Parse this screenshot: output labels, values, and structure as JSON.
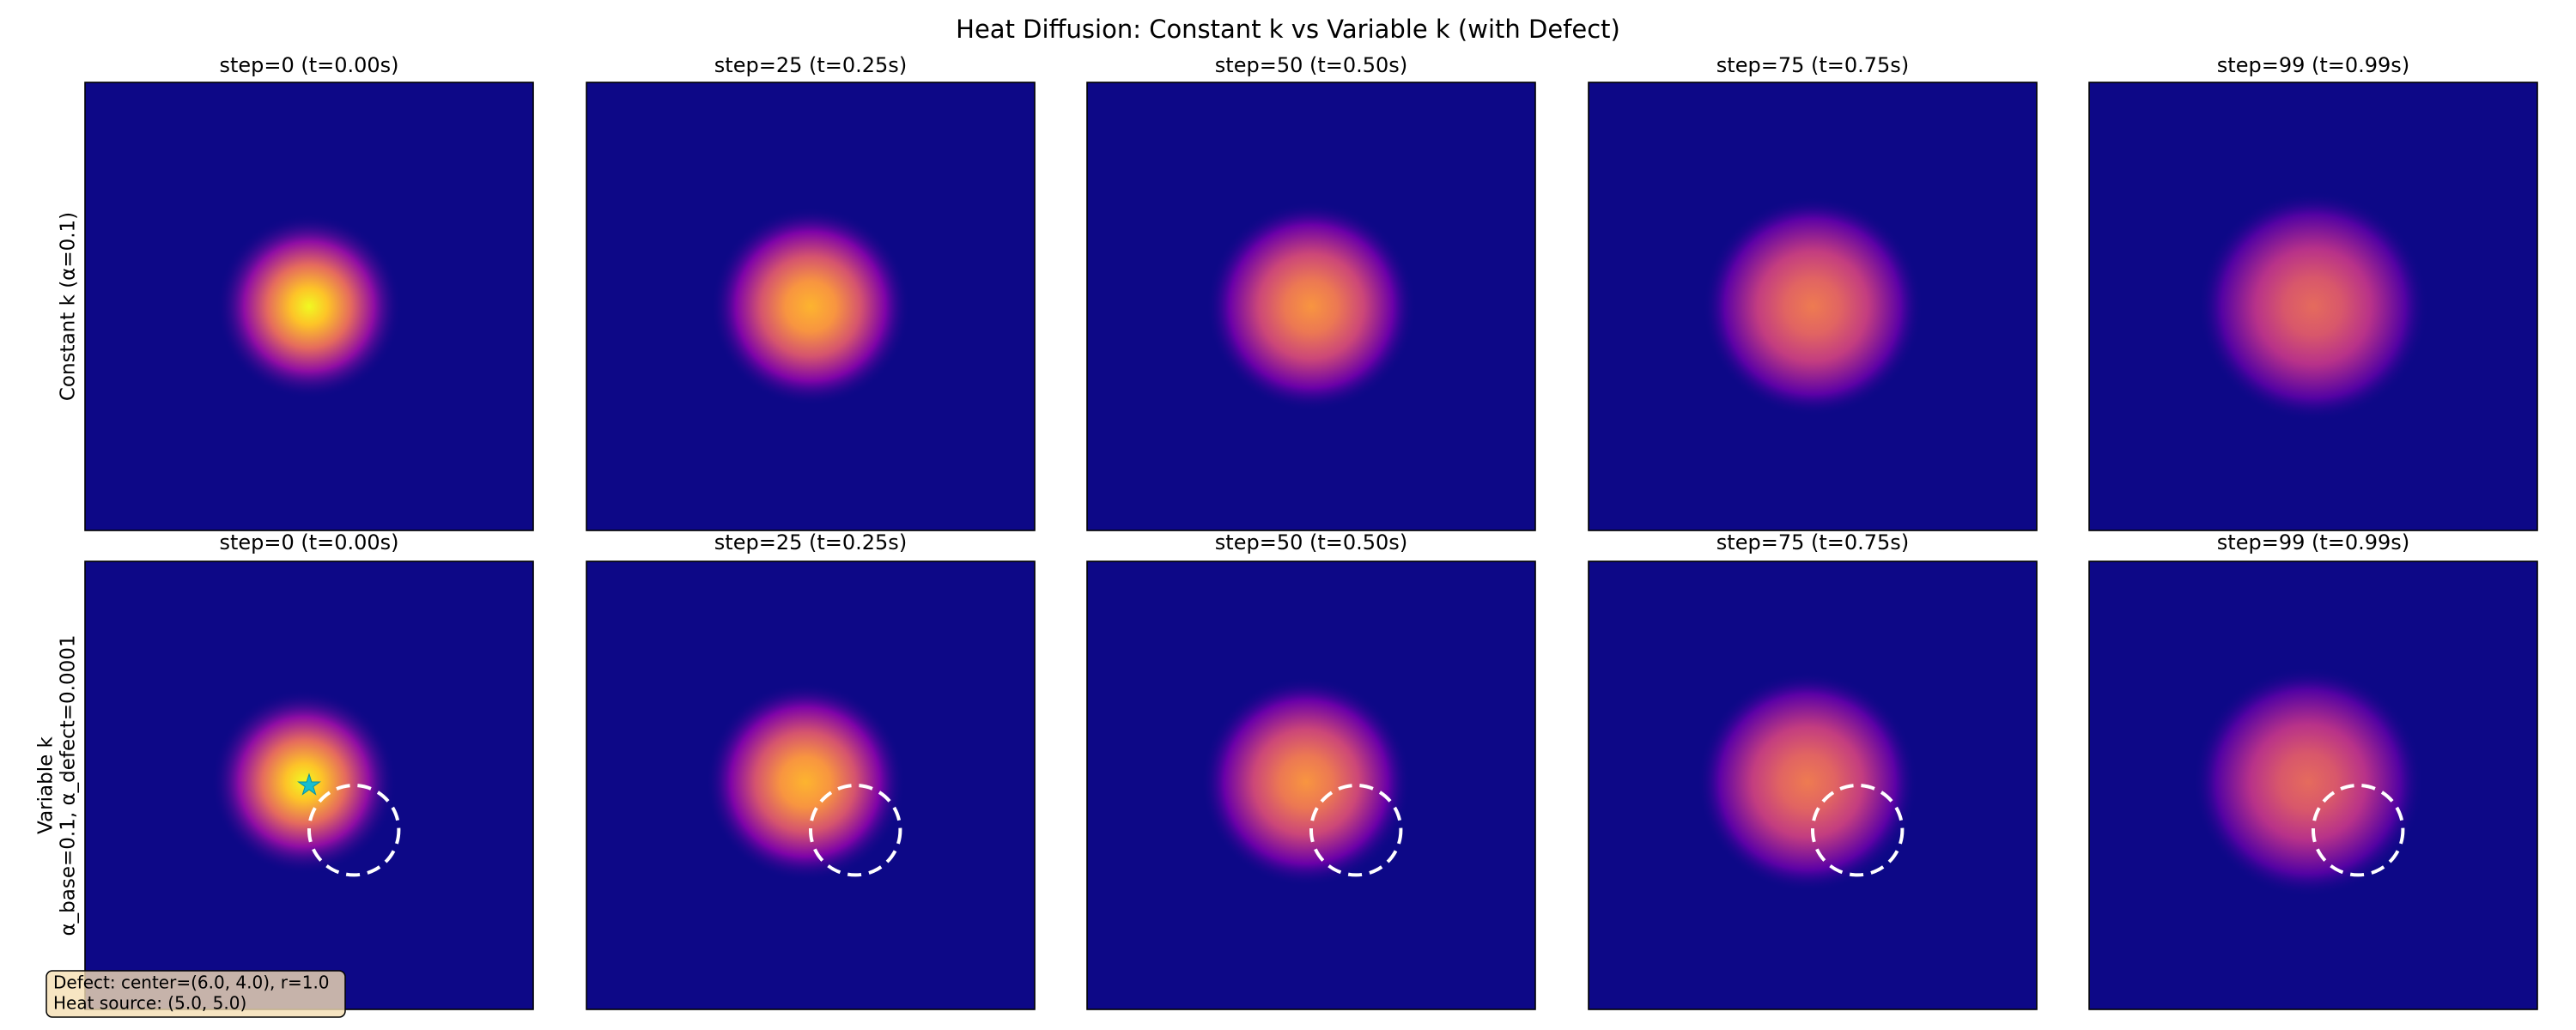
{
  "title": "Heat Diffusion: Constant k vs Variable k (with Defect)",
  "rows": [
    {
      "label_lines": [
        "Constant k (α=0.1)"
      ],
      "panels": [
        "step=0 (t=0.00s)",
        "step=25 (t=0.25s)",
        "step=50 (t=0.50s)",
        "step=75 (t=0.75s)",
        "step=99 (t=0.99s)"
      ]
    },
    {
      "label_lines": [
        "Variable k",
        "α_base=0.1, α_defect=0.0001"
      ],
      "panels": [
        "step=0 (t=0.00s)",
        "step=25 (t=0.25s)",
        "step=50 (t=0.50s)",
        "step=75 (t=0.75s)",
        "step=99 (t=0.99s)"
      ]
    }
  ],
  "annotation": {
    "lines": [
      "Defect: center=(6.0, 4.0), r=1.0",
      "Heat source: (5.0, 5.0)"
    ]
  }
}
